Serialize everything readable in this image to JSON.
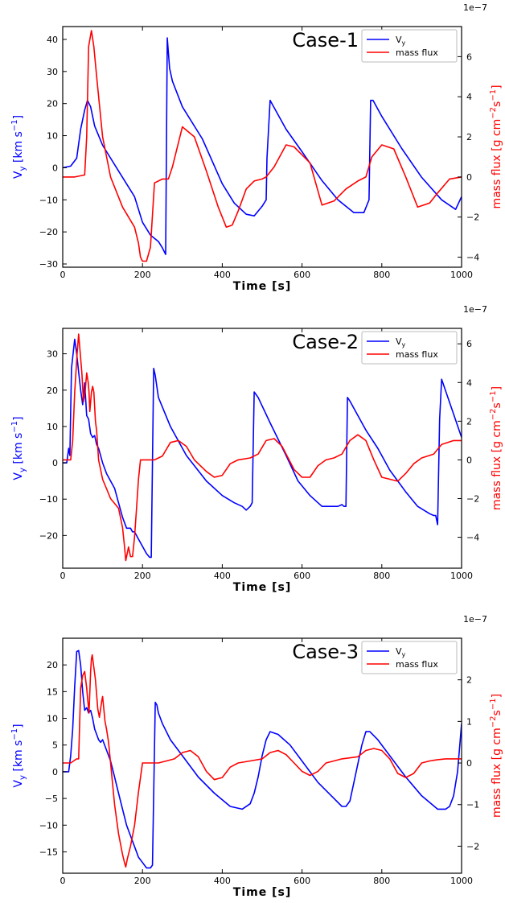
{
  "chart_data": [
    {
      "type": "line",
      "title": "Case-1",
      "xlabel": "Time [s]",
      "xlim": [
        0,
        1000
      ],
      "xticks": [
        0,
        200,
        400,
        600,
        800,
        1000
      ],
      "ylabel_left": "V_y [km s^-1]",
      "ylim_left": [
        -31,
        44
      ],
      "yticks_left": [
        -30,
        -20,
        -10,
        0,
        10,
        20,
        30,
        40
      ],
      "ylabel_right": "mass flux [g cm^-2 s^-1]",
      "right_scale_label": "1e−7",
      "ylim_right": [
        -4.5,
        7.5
      ],
      "yticks_right": [
        -4,
        -2,
        0,
        2,
        4,
        6
      ],
      "legend": "top-right",
      "series": [
        {
          "name": "V_y",
          "axis": "left",
          "color": "#0000ff",
          "x": [
            0,
            20,
            35,
            45,
            55,
            62,
            70,
            80,
            100,
            140,
            180,
            200,
            220,
            240,
            250,
            258,
            262,
            268,
            275,
            300,
            350,
            400,
            430,
            460,
            480,
            500,
            510,
            512,
            520,
            560,
            600,
            650,
            690,
            730,
            755,
            768,
            772,
            778,
            800,
            850,
            900,
            950,
            985,
            1000
          ],
          "y": [
            0,
            0.5,
            3,
            12,
            18,
            21,
            19,
            13,
            7,
            -1,
            -9,
            -17,
            -21,
            -23,
            -25,
            -27,
            40.5,
            31,
            27,
            19,
            9,
            -5,
            -11,
            -14.5,
            -15,
            -12,
            -10,
            3,
            21,
            12,
            5,
            -4,
            -10,
            -14,
            -14,
            -10,
            21,
            21,
            16,
            6,
            -3,
            -10,
            -13,
            -9
          ]
        },
        {
          "name": "mass flux",
          "axis": "right",
          "color": "#ff0000",
          "x": [
            0,
            30,
            55,
            60,
            65,
            72,
            78,
            85,
            100,
            120,
            150,
            180,
            190,
            195,
            200,
            210,
            220,
            230,
            250,
            258,
            265,
            275,
            300,
            330,
            360,
            390,
            410,
            425,
            440,
            460,
            480,
            500,
            510,
            530,
            560,
            580,
            620,
            650,
            680,
            710,
            740,
            760,
            775,
            800,
            830,
            860,
            890,
            920,
            940,
            970,
            1000
          ],
          "y": [
            0,
            0,
            0.1,
            2,
            6.5,
            7.3,
            6.5,
            5,
            2,
            0,
            -1.5,
            -2.5,
            -3.3,
            -4,
            -4.2,
            -4.2,
            -3.5,
            -0.3,
            -0.1,
            -0.1,
            -0.1,
            0.5,
            2.5,
            2,
            0.3,
            -1.5,
            -2.5,
            -2.4,
            -1.7,
            -0.6,
            -0.2,
            -0.1,
            0,
            0.5,
            1.6,
            1.5,
            0.7,
            -1.4,
            -1.2,
            -0.6,
            -0.2,
            0,
            1,
            1.6,
            1.4,
            0,
            -1.5,
            -1.3,
            -0.8,
            -0.1,
            0
          ]
        }
      ]
    },
    {
      "type": "line",
      "title": "Case-2",
      "xlabel": "Time [s]",
      "xlim": [
        0,
        1000
      ],
      "xticks": [
        0,
        200,
        400,
        600,
        800,
        1000
      ],
      "ylabel_left": "V_y [km s^-1]",
      "ylim_left": [
        -29,
        37
      ],
      "yticks_left": [
        -20,
        -10,
        0,
        10,
        20,
        30
      ],
      "ylabel_right": "mass flux [g cm^-2 s^-1]",
      "right_scale_label": "1e−7",
      "ylim_right": [
        -5.6,
        6.8
      ],
      "yticks_right": [
        -4,
        -2,
        0,
        2,
        4,
        6
      ],
      "legend": "top-right",
      "series": [
        {
          "name": "V_y",
          "axis": "left",
          "color": "#0000ff",
          "x": [
            0,
            10,
            15,
            18,
            22,
            30,
            35,
            40,
            45,
            50,
            55,
            60,
            65,
            70,
            75,
            80,
            85,
            90,
            95,
            100,
            110,
            120,
            130,
            140,
            150,
            160,
            170,
            175,
            180,
            190,
            200,
            210,
            218,
            222,
            228,
            232,
            240,
            270,
            310,
            360,
            400,
            430,
            450,
            460,
            470,
            475,
            480,
            490,
            520,
            560,
            590,
            620,
            650,
            680,
            690,
            700,
            705,
            710,
            714,
            720,
            760,
            790,
            820,
            860,
            890,
            920,
            930,
            935,
            940,
            945,
            950,
            1000
          ],
          "y": [
            0,
            0,
            4,
            2,
            26,
            34,
            30,
            25,
            20,
            16,
            22,
            13,
            12,
            8,
            7,
            7.5,
            5,
            4,
            2,
            0,
            -3,
            -5,
            -7,
            -11,
            -15,
            -18,
            -18,
            -19,
            -19,
            -21,
            -23,
            -25,
            -26,
            -26,
            26,
            24,
            18,
            10,
            2,
            -5,
            -9,
            -11,
            -12,
            -13,
            -12,
            -11,
            19.5,
            18,
            11,
            2,
            -5,
            -9,
            -12,
            -12,
            -12,
            -11.5,
            -12,
            -12,
            18,
            17,
            9,
            4,
            -2,
            -8,
            -12,
            -14,
            -14.5,
            -14.5,
            -17,
            12,
            23,
            7
          ]
        },
        {
          "name": "mass flux",
          "axis": "right",
          "color": "#ff0000",
          "x": [
            0,
            20,
            25,
            30,
            36,
            40,
            44,
            48,
            52,
            56,
            60,
            64,
            66,
            68,
            72,
            75,
            78,
            82,
            85,
            90,
            95,
            100,
            110,
            120,
            140,
            150,
            155,
            158,
            162,
            165,
            170,
            175,
            180,
            185,
            190,
            195,
            200,
            210,
            230,
            250,
            270,
            290,
            310,
            330,
            360,
            380,
            400,
            420,
            440,
            470,
            490,
            510,
            530,
            550,
            580,
            600,
            620,
            640,
            660,
            680,
            700,
            720,
            740,
            760,
            780,
            800,
            840,
            860,
            880,
            900,
            930,
            950,
            980,
            1000
          ],
          "y": [
            0,
            0,
            1,
            3.5,
            5.5,
            6.5,
            5.5,
            4.5,
            3,
            3.5,
            4.5,
            4,
            3.5,
            2.5,
            3.5,
            3.8,
            3.5,
            2,
            1.5,
            0,
            -0.5,
            -1,
            -1.5,
            -2,
            -2.5,
            -3.5,
            -4.5,
            -5.2,
            -4.8,
            -4.5,
            -5,
            -5,
            -4,
            -2.5,
            -1,
            0,
            0,
            0,
            0,
            0.2,
            0.9,
            1,
            0.7,
            0,
            -0.6,
            -0.9,
            -0.8,
            -0.2,
            0,
            0.1,
            0.3,
            1,
            1.1,
            0.7,
            -0.5,
            -0.9,
            -0.9,
            -0.3,
            0,
            0.1,
            0.3,
            1,
            1.3,
            1,
            0,
            -0.9,
            -1.1,
            -0.7,
            -0.2,
            0.1,
            0.3,
            0.8,
            1,
            1
          ]
        }
      ]
    },
    {
      "type": "line",
      "title": "Case-3",
      "xlabel": "Time [s]",
      "xlim": [
        0,
        1000
      ],
      "xticks": [
        0,
        200,
        400,
        600,
        800,
        1000
      ],
      "ylabel_left": "V_y [km s^-1]",
      "ylim_left": [
        -19,
        25
      ],
      "yticks_left": [
        -15,
        -10,
        -5,
        0,
        5,
        10,
        15,
        20
      ],
      "ylabel_right": "mass flux [g cm^-2 s^-1]",
      "right_scale_label": "1e−7",
      "ylim_right": [
        -2.65,
        3.0
      ],
      "yticks_right": [
        -2,
        -1,
        0,
        1,
        2
      ],
      "legend": "top-right",
      "series": [
        {
          "name": "V_y",
          "axis": "left",
          "color": "#0000ff",
          "x": [
            0,
            10,
            15,
            20,
            25,
            30,
            35,
            40,
            45,
            50,
            55,
            60,
            65,
            70,
            75,
            80,
            85,
            90,
            95,
            100,
            110,
            120,
            130,
            140,
            150,
            160,
            170,
            180,
            190,
            200,
            210,
            215,
            220,
            225,
            232,
            236,
            240,
            250,
            270,
            300,
            340,
            380,
            420,
            450,
            470,
            480,
            490,
            500,
            510,
            520,
            540,
            570,
            600,
            640,
            680,
            700,
            710,
            720,
            730,
            750,
            760,
            770,
            790,
            820,
            860,
            900,
            940,
            960,
            970,
            980,
            990,
            1000
          ],
          "y": [
            0,
            0,
            0,
            3,
            8,
            16,
            22.5,
            22.7,
            20,
            15,
            11.5,
            12,
            11,
            11.5,
            10,
            8,
            7,
            6,
            5.5,
            6,
            4,
            2,
            -1,
            -4,
            -7,
            -10,
            -12,
            -14,
            -16,
            -17,
            -18,
            -18,
            -18,
            -17.5,
            13,
            12.5,
            11,
            9,
            6,
            3,
            -1,
            -4,
            -6.5,
            -7,
            -6,
            -4,
            -1,
            3,
            6,
            7.5,
            7,
            5,
            2,
            -2,
            -5,
            -6.5,
            -6.5,
            -5.5,
            -2,
            5,
            7.5,
            7.5,
            6,
            3,
            -1,
            -4.5,
            -7,
            -7,
            -6.5,
            -4.5,
            0,
            9
          ]
        },
        {
          "name": "mass flux",
          "axis": "right",
          "color": "#ff0000",
          "x": [
            0,
            20,
            35,
            40,
            45,
            50,
            55,
            60,
            63,
            66,
            70,
            72,
            74,
            78,
            82,
            88,
            92,
            95,
            98,
            100,
            102,
            106,
            110,
            115,
            120,
            130,
            140,
            150,
            155,
            158,
            162,
            170,
            180,
            190,
            200,
            210,
            220,
            230,
            240,
            260,
            280,
            300,
            320,
            340,
            360,
            380,
            400,
            420,
            440,
            470,
            500,
            520,
            540,
            560,
            580,
            600,
            620,
            640,
            660,
            680,
            700,
            740,
            760,
            780,
            800,
            820,
            840,
            860,
            880,
            900,
            920,
            940,
            960,
            1000
          ],
          "y": [
            0,
            0,
            0.1,
            0.1,
            1.8,
            2.1,
            2.2,
            1.8,
            1.5,
            1.2,
            2.2,
            2.5,
            2.6,
            2.3,
            2,
            1.3,
            1.1,
            1.3,
            1.5,
            1.6,
            1.4,
            1,
            0.8,
            0.5,
            0,
            -1,
            -1.7,
            -2.2,
            -2.4,
            -2.5,
            -2.3,
            -2,
            -1.5,
            -0.7,
            0,
            0,
            0,
            0,
            0,
            0.05,
            0.1,
            0.25,
            0.3,
            0.15,
            -0.2,
            -0.4,
            -0.35,
            -0.1,
            0,
            0.05,
            0.1,
            0.25,
            0.3,
            0.2,
            0,
            -0.2,
            -0.3,
            -0.2,
            0,
            0.05,
            0.1,
            0.15,
            0.3,
            0.35,
            0.3,
            0.1,
            -0.25,
            -0.35,
            -0.25,
            0,
            0.05,
            0.08,
            0.1,
            0.1
          ]
        }
      ]
    }
  ]
}
